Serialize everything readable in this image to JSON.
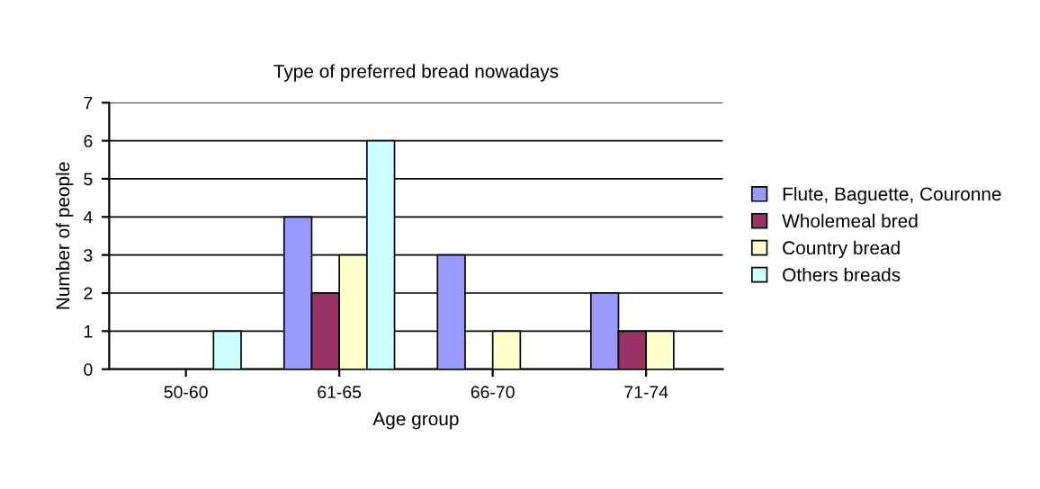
{
  "chart_data": {
    "type": "bar",
    "title": "Type of preferred bread nowadays",
    "xlabel": "Age group",
    "ylabel": "Number of people",
    "categories": [
      "50-60",
      "61-65",
      "66-70",
      "71-74"
    ],
    "series": [
      {
        "name": "Flute, Baguette, Couronne",
        "color": "#9999ff",
        "values": [
          null,
          4,
          3,
          2
        ]
      },
      {
        "name": "Wholemeal bred",
        "color": "#993366",
        "values": [
          null,
          2,
          null,
          1
        ]
      },
      {
        "name": "Country bread",
        "color": "#ffffcc",
        "values": [
          null,
          3,
          1,
          1
        ]
      },
      {
        "name": "Others breads",
        "color": "#ccffff",
        "values": [
          1,
          6,
          null,
          null
        ]
      }
    ],
    "ylim": [
      0,
      7
    ],
    "yticks": [
      0,
      1,
      2,
      3,
      4,
      5,
      6,
      7
    ],
    "grid": "y",
    "legend": "right"
  }
}
